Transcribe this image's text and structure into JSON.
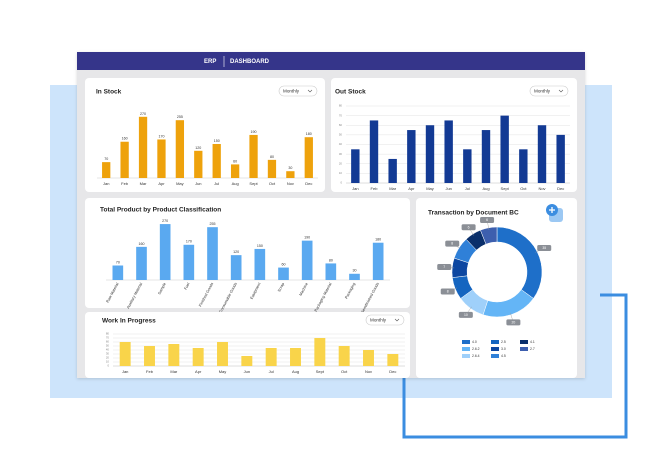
{
  "header": {
    "brand": "ERP",
    "section": "DASHBOARD"
  },
  "chart_data": [
    {
      "type": "bar",
      "title": "In Stock",
      "control": "Monthly",
      "categories": [
        "Jan",
        "Feb",
        "Mar",
        "Apr",
        "May",
        "Jun",
        "Jul",
        "Aug",
        "Sept",
        "Oct",
        "Nov",
        "Dec"
      ],
      "values": [
        70,
        160,
        270,
        170,
        255,
        120,
        150,
        60,
        190,
        80,
        30,
        180
      ],
      "color": "#eea20c",
      "ylim": [
        0,
        300
      ],
      "data_labels": true,
      "rotate_labels": false
    },
    {
      "type": "bar",
      "title": "Out Stock",
      "control": "Monthly",
      "categories": [
        "Jan",
        "Feb",
        "Mar",
        "Apr",
        "May",
        "Jun",
        "Jul",
        "Aug",
        "Sept",
        "Oct",
        "Nov",
        "Dec"
      ],
      "values": [
        35,
        65,
        25,
        55,
        60,
        65,
        35,
        55,
        70,
        35,
        60,
        50
      ],
      "color": "#133a94",
      "ylim": [
        0,
        80
      ],
      "yticks": [
        0,
        10,
        20,
        30,
        40,
        50,
        60,
        70,
        80
      ],
      "grid": true,
      "data_labels": false,
      "rotate_labels": false
    },
    {
      "type": "bar",
      "title": "Total Product by Product Classification",
      "categories": [
        "Raw Material",
        "Auxiliary Material",
        "Sample",
        "Fuel",
        "Finished Goods",
        "Consumable Goods",
        "Equipment",
        "Scrap",
        "Machine",
        "Packaging Material",
        "Packaging",
        "Semifinished Goods"
      ],
      "values": [
        70,
        160,
        270,
        170,
        255,
        120,
        150,
        60,
        190,
        80,
        30,
        180
      ],
      "color": "#5aa9f0",
      "ylim": [
        0,
        280
      ],
      "data_labels": true,
      "rotate_labels": true
    },
    {
      "type": "bar",
      "title": "Work In Progress",
      "control": "Monthly",
      "categories": [
        "Jan",
        "Feb",
        "Mar",
        "Apr",
        "May",
        "Jun",
        "Jul",
        "Aug",
        "Sept",
        "Oct",
        "Nov",
        "Dec"
      ],
      "values": [
        60,
        50,
        55,
        45,
        60,
        25,
        45,
        45,
        70,
        50,
        40,
        30
      ],
      "color": "#f9d44a",
      "ylim": [
        0,
        80
      ],
      "yticks": [
        0,
        10,
        20,
        30,
        40,
        50,
        60,
        70,
        80
      ],
      "grid": true,
      "data_labels": false,
      "rotate_labels": false
    },
    {
      "type": "donut",
      "title": "Transaction by Document BC",
      "categories": [
        "4.0",
        "2.6.2",
        "2.6.4",
        "2.5",
        "3.0",
        "4.5",
        "4.1",
        "2.7"
      ],
      "values": [
        35,
        20,
        10,
        8,
        7,
        8,
        6,
        6
      ],
      "colors": [
        "#1e6fc9",
        "#64b5f6",
        "#9fd0fa",
        "#1565c0",
        "#0d47a1",
        "#2f80d8",
        "#0a2f6b",
        "#3d5fae"
      ]
    }
  ]
}
